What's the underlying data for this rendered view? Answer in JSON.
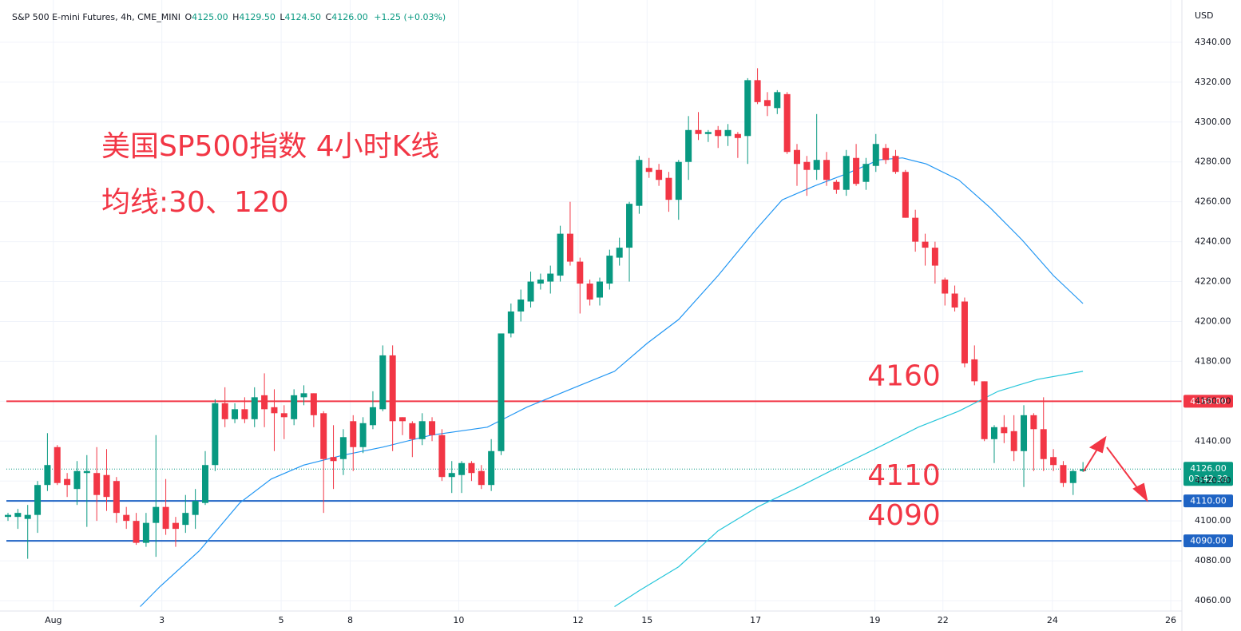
{
  "chart_data": {
    "type": "candlestick",
    "header": {
      "symbol": "S&P 500 E-mini Futures, 4h, CME_MINI",
      "ohlc": [
        {
          "label": "O",
          "value": "4125.00"
        },
        {
          "label": "H",
          "value": "4129.50"
        },
        {
          "label": "L",
          "value": "4124.50"
        },
        {
          "label": "C",
          "value": "4126.00"
        }
      ],
      "change": "+1.25 (+0.03%)"
    },
    "annotations": [
      "美国SP500指数 4小时K线",
      "均线:30、120"
    ],
    "currency": "USD",
    "up_color": "#089981",
    "down_color": "#f23645",
    "open": [
      4102,
      4102,
      4101,
      4103,
      4118,
      4137,
      4121,
      4116,
      4124,
      4124,
      4123,
      4120,
      4103,
      4100,
      4089,
      4099,
      4107,
      4099,
      4098,
      4103,
      4109,
      4128,
      4159,
      4151,
      4156,
      4151,
      4163,
      4157,
      4154,
      4151,
      4162,
      4164,
      4154,
      4132,
      4131,
      4150,
      4137,
      4148,
      4156,
      4183,
      4152,
      4149,
      4141,
      4150,
      4143,
      4122,
      4123,
      4129,
      4125,
      4118,
      4135,
      4194,
      4205,
      4210,
      4219,
      4220,
      4223,
      4244,
      4230,
      4219,
      4212,
      4219,
      4232,
      4237,
      4258,
      4277,
      4276,
      4272,
      4261,
      4280,
      4296,
      4294,
      4296,
      4293,
      4294,
      4293,
      4321,
      4311,
      4307,
      4314,
      4286,
      4280,
      4276,
      4281,
      4270,
      4266,
      4282,
      4270,
      4278,
      4287,
      4283,
      4275,
      4252,
      4240,
      4237,
      4221,
      4214,
      4210,
      4181,
      4170,
      4141,
      4147,
      4145,
      4135,
      4153,
      4146,
      4132,
      4128,
      4119,
      4125
    ],
    "high": [
      4104,
      4106,
      4108,
      4120,
      4144,
      4138,
      4124,
      4130,
      4133,
      4137,
      4136,
      4122,
      4107,
      4104,
      4104,
      4143,
      4121,
      4102,
      4113,
      4116,
      4135,
      4161,
      4167,
      4159,
      4162,
      4167,
      4174,
      4166,
      4158,
      4166,
      4168,
      4164,
      4155,
      4148,
      4146,
      4153,
      4152,
      4165,
      4188,
      4188,
      4152,
      4150,
      4154,
      4152,
      4146,
      4130,
      4130,
      4130,
      4128,
      4141,
      4194,
      4209,
      4216,
      4225,
      4224,
      4228,
      4248,
      4260,
      4232,
      4221,
      4222,
      4236,
      4242,
      4260,
      4283,
      4282,
      4279,
      4275,
      4281,
      4303,
      4305,
      4296,
      4298,
      4299,
      4295,
      4322,
      4327,
      4315,
      4316,
      4315,
      4289,
      4283,
      4304,
      4285,
      4271,
      4286,
      4289,
      4282,
      4294,
      4289,
      4286,
      4276,
      4256,
      4244,
      4240,
      4222,
      4218,
      4212,
      4188,
      4170,
      4148,
      4153,
      4153,
      4158,
      4154,
      4162,
      4136,
      4130,
      4126,
      4129.5
    ],
    "low": [
      4100,
      4096,
      4081,
      4094,
      4115,
      4118,
      4112,
      4108,
      4097,
      4100,
      4105,
      4099,
      4096,
      4088,
      4087,
      4082,
      4093,
      4087,
      4094,
      4096,
      4108,
      4125,
      4147,
      4149,
      4149,
      4147,
      4147,
      4135,
      4141,
      4148,
      4158,
      4147,
      4104,
      4116,
      4123,
      4125,
      4134,
      4146,
      4155,
      4135,
      4143,
      4132,
      4138,
      4140,
      4120,
      4114,
      4114,
      4120,
      4116,
      4115,
      4133,
      4192,
      4200,
      4207,
      4216,
      4214,
      4220,
      4228,
      4204,
      4208,
      4208,
      4216,
      4228,
      4220,
      4254,
      4272,
      4268,
      4255,
      4251,
      4271,
      4291,
      4290,
      4287,
      4288,
      4282,
      4279,
      4309,
      4303,
      4304,
      4284,
      4268,
      4263,
      4271,
      4268,
      4264,
      4263,
      4268,
      4266,
      4275,
      4279,
      4274,
      4252,
      4235,
      4228,
      4219,
      4208,
      4205,
      4177,
      4168,
      4140,
      4129,
      4139,
      4130,
      4117,
      4125,
      4125,
      4125,
      4117,
      4113,
      4124.5
    ],
    "close": [
      4103,
      4104,
      4103,
      4118,
      4128,
      4119,
      4118,
      4125,
      4125,
      4113,
      4112,
      4104,
      4100,
      4089,
      4099,
      4107,
      4096,
      4096,
      4104,
      4110,
      4128,
      4159,
      4151,
      4156,
      4151,
      4162,
      4156,
      4154,
      4152,
      4163,
      4164,
      4153,
      4131,
      4130,
      4142,
      4137,
      4149,
      4157,
      4183,
      4150,
      4150,
      4141,
      4150,
      4143,
      4122,
      4124,
      4129,
      4124,
      4118,
      4135,
      4194,
      4205,
      4211,
      4220,
      4221,
      4224,
      4244,
      4230,
      4219,
      4211,
      4220,
      4233,
      4237,
      4259,
      4281,
      4275,
      4271,
      4261,
      4280,
      4296,
      4294,
      4295,
      4293,
      4296,
      4292,
      4321,
      4310,
      4308,
      4315,
      4285,
      4279,
      4276,
      4281,
      4271,
      4266,
      4283,
      4269,
      4279,
      4289,
      4281,
      4275,
      4252,
      4240,
      4237,
      4228,
      4214,
      4207,
      4179,
      4170,
      4141,
      4147,
      4144,
      4135,
      4153,
      4146,
      4131,
      4128,
      4119,
      4125,
      4126
    ],
    "ma_lines": [
      {
        "color": "#2196f3",
        "x": [
          13.4,
          15.4,
          19.4,
          23.5,
          26.7,
          30,
          34,
          38,
          42.9,
          48.6,
          52.6,
          57.5,
          61.5,
          64.8,
          68,
          72,
          76,
          78.5,
          81.8,
          85,
          88.3,
          90.7,
          93.1,
          96.4,
          99.6,
          102.8,
          106,
          109
        ],
        "values": [
          4057,
          4067,
          4085,
          4109,
          4121,
          4128,
          4133,
          4137,
          4143,
          4147,
          4157,
          4167,
          4175,
          4189,
          4201,
          4223,
          4247,
          4261,
          4268,
          4274,
          4281,
          4282,
          4279,
          4271,
          4257,
          4241,
          4223,
          4209
        ]
      },
      {
        "color": "#26c6da",
        "x": [
          61.5,
          64,
          68,
          72,
          76,
          80.2,
          84.2,
          88.3,
          92.3,
          96.4,
          100.4,
          104.4,
          109
        ],
        "values": [
          4057,
          4065,
          4077,
          4095,
          4107,
          4117,
          4127,
          4137,
          4147,
          4155,
          4165,
          4171,
          4175
        ]
      }
    ],
    "levels": [
      {
        "value": 4160,
        "label": "4160.00",
        "color": "#f23645"
      },
      {
        "value": 4110,
        "label": "4110.00",
        "color": "#1e63c4"
      },
      {
        "value": 4090,
        "label": "4090.00",
        "color": "#1e63c4"
      }
    ],
    "current_price": {
      "value": 4126,
      "label": "4126.00",
      "countdown": "03:42:39",
      "color": "#089981"
    },
    "xlim": [
      -0.81,
      119.03
    ],
    "xticks": [
      {
        "value": 4.6,
        "label": "Aug"
      },
      {
        "value": 15.6,
        "label": "3"
      },
      {
        "value": 27.7,
        "label": "5"
      },
      {
        "value": 34.7,
        "label": "8"
      },
      {
        "value": 45.7,
        "label": "10"
      },
      {
        "value": 57.8,
        "label": "12"
      },
      {
        "value": 64.8,
        "label": "15"
      },
      {
        "value": 75.8,
        "label": "17"
      },
      {
        "value": 87.9,
        "label": "19"
      },
      {
        "value": 94.8,
        "label": "22"
      },
      {
        "value": 105.9,
        "label": "24"
      },
      {
        "value": 117.9,
        "label": "26"
      }
    ],
    "ylim": [
      4054.8,
      4361.2
    ],
    "yticks": [
      {
        "value": 4060,
        "label": "4060.00"
      },
      {
        "value": 4080,
        "label": "4080.00"
      },
      {
        "value": 4100,
        "label": "4100.00"
      },
      {
        "value": 4120,
        "label": "4120.00"
      },
      {
        "value": 4140,
        "label": "4140.00"
      },
      {
        "value": 4160,
        "label": "4160.00"
      },
      {
        "value": 4180,
        "label": "4180.00"
      },
      {
        "value": 4200,
        "label": "4200.00"
      },
      {
        "value": 4220,
        "label": "4220.00"
      },
      {
        "value": 4240,
        "label": "4240.00"
      },
      {
        "value": 4260,
        "label": "4260.00"
      },
      {
        "value": 4280,
        "label": "4280.00"
      },
      {
        "value": 4300,
        "label": "4300.00"
      },
      {
        "value": 4320,
        "label": "4320.00"
      },
      {
        "value": 4340,
        "label": "4340.00"
      }
    ],
    "grid": true
  }
}
